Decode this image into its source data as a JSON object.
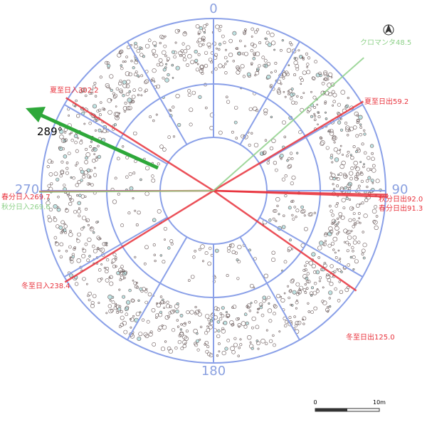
{
  "compass": {
    "north": "0",
    "east": "90",
    "south": "180",
    "west": "270"
  },
  "lines": [
    {
      "name": "夏至日入",
      "azimuth": 302.2,
      "color": "#e8323c"
    },
    {
      "name": "夏至日出",
      "azimuth": 59.2,
      "color": "#e8323c"
    },
    {
      "name": "秋分日出",
      "azimuth": 92.0,
      "color": "#e8323c"
    },
    {
      "name": "春分日出",
      "azimuth": 91.3,
      "color": "#e8323c"
    },
    {
      "name": "冬至日出",
      "azimuth": 125.0,
      "color": "#e8323c"
    },
    {
      "name": "冬至日入",
      "azimuth": 238.4,
      "color": "#e8323c"
    },
    {
      "name": "春分日入",
      "azimuth": 269.7,
      "color": "#e8323c"
    },
    {
      "name": "秋分日入",
      "azimuth": 269.6,
      "color": "#8fd18a"
    },
    {
      "name": "クロマンタ",
      "azimuth": 48.5,
      "color": "#8fd18a"
    }
  ],
  "arrow_label": "289°",
  "scale": {
    "start": "0",
    "end": "10m"
  }
}
